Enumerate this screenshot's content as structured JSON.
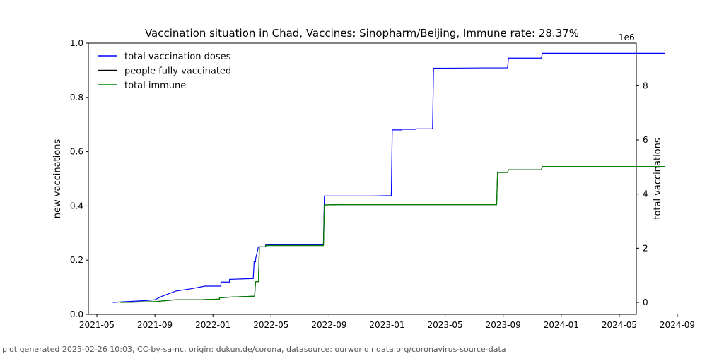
{
  "chart_data": {
    "type": "line",
    "title": "Vaccination situation in Chad, Vaccines: Sinopharm/Beijing, Immune rate: 28.37%",
    "ylabel_left": "new vaccinations",
    "ylabel_right": "total vaccinations",
    "right_axis_multiplier": "1e6",
    "left_ylim": [
      0,
      1.0
    ],
    "left_yticks": [
      "0.0",
      "0.2",
      "0.4",
      "0.6",
      "0.8",
      "1.0"
    ],
    "right_yticks": [
      "0",
      "2",
      "4",
      "6",
      "8"
    ],
    "xticks": [
      "2021-05",
      "2021-09",
      "2022-01",
      "2022-05",
      "2022-09",
      "2023-01",
      "2023-05",
      "2023-09",
      "2024-01",
      "2024-05",
      "2024-09"
    ],
    "legend_position": "upper-left",
    "series": [
      {
        "name": "total vaccination doses",
        "color": "#0000ff",
        "points": [
          [
            "2021-06-04",
            0.0
          ],
          [
            "2021-07-01",
            0.03
          ],
          [
            "2021-08-15",
            0.07
          ],
          [
            "2021-09-01",
            0.1
          ],
          [
            "2021-09-15",
            0.22
          ],
          [
            "2021-10-01",
            0.33
          ],
          [
            "2021-10-15",
            0.42
          ],
          [
            "2021-11-15",
            0.5
          ],
          [
            "2021-12-15",
            0.6
          ],
          [
            "2022-01-18",
            0.6
          ],
          [
            "2022-01-18",
            0.75
          ],
          [
            "2022-02-05",
            0.75
          ],
          [
            "2022-02-05",
            0.85
          ],
          [
            "2022-03-25",
            0.88
          ],
          [
            "2022-03-27",
            1.5
          ],
          [
            "2022-03-30",
            1.5
          ],
          [
            "2022-03-30",
            1.6
          ],
          [
            "2022-04-05",
            2.05
          ],
          [
            "2022-04-20",
            2.05
          ],
          [
            "2022-04-20",
            2.12
          ],
          [
            "2022-05-10",
            2.13
          ],
          [
            "2022-08-20",
            2.13
          ],
          [
            "2022-08-22",
            3.93
          ],
          [
            "2022-12-01",
            3.93
          ],
          [
            "2022-12-31",
            3.94
          ],
          [
            "2023-01-10",
            3.94
          ],
          [
            "2023-01-12",
            6.37
          ],
          [
            "2023-02-01",
            6.37
          ],
          [
            "2023-02-01",
            6.39
          ],
          [
            "2023-03-01",
            6.39
          ],
          [
            "2023-03-01",
            6.41
          ],
          [
            "2023-04-05",
            6.41
          ],
          [
            "2023-04-07",
            8.65
          ],
          [
            "2023-05-15",
            8.65
          ],
          [
            "2023-07-20",
            8.66
          ],
          [
            "2023-09-10",
            8.66
          ],
          [
            "2023-09-12",
            9.02
          ],
          [
            "2023-11-20",
            9.02
          ],
          [
            "2023-11-22",
            9.2
          ],
          [
            "2024-08-05",
            9.2
          ]
        ]
      },
      {
        "name": "people fully vaccinated",
        "color": "#000000",
        "points": [
          [
            "2021-06-20",
            0.0
          ],
          [
            "2021-09-01",
            0.03
          ],
          [
            "2021-10-15",
            0.1
          ],
          [
            "2021-12-01",
            0.1
          ],
          [
            "2022-01-15",
            0.12
          ],
          [
            "2022-01-15",
            0.17
          ],
          [
            "2022-02-10",
            0.2
          ],
          [
            "2022-03-28",
            0.23
          ],
          [
            "2022-03-30",
            0.76
          ],
          [
            "2022-04-05",
            0.76
          ],
          [
            "2022-04-07",
            2.05
          ],
          [
            "2022-04-20",
            2.05
          ],
          [
            "2022-04-20",
            2.1
          ],
          [
            "2022-08-20",
            2.1
          ],
          [
            "2022-08-22",
            3.6
          ],
          [
            "2022-09-20",
            3.61
          ],
          [
            "2023-08-18",
            3.61
          ],
          [
            "2023-08-20",
            4.8
          ],
          [
            "2023-09-10",
            4.8
          ],
          [
            "2023-09-12",
            4.9
          ],
          [
            "2023-11-20",
            4.9
          ],
          [
            "2023-11-22",
            5.02
          ],
          [
            "2024-08-05",
            5.02
          ]
        ]
      },
      {
        "name": "total immune",
        "color": "#008000",
        "points": [
          [
            "2021-06-20",
            0.0
          ],
          [
            "2021-09-01",
            0.03
          ],
          [
            "2021-10-15",
            0.1
          ],
          [
            "2021-12-01",
            0.1
          ],
          [
            "2022-01-15",
            0.12
          ],
          [
            "2022-01-15",
            0.17
          ],
          [
            "2022-02-10",
            0.2
          ],
          [
            "2022-03-28",
            0.23
          ],
          [
            "2022-03-30",
            0.76
          ],
          [
            "2022-04-05",
            0.76
          ],
          [
            "2022-04-07",
            2.05
          ],
          [
            "2022-04-20",
            2.05
          ],
          [
            "2022-04-20",
            2.1
          ],
          [
            "2022-08-20",
            2.1
          ],
          [
            "2022-08-22",
            3.6
          ],
          [
            "2022-09-20",
            3.61
          ],
          [
            "2023-08-18",
            3.61
          ],
          [
            "2023-08-20",
            4.8
          ],
          [
            "2023-09-10",
            4.8
          ],
          [
            "2023-09-12",
            4.9
          ],
          [
            "2023-11-20",
            4.9
          ],
          [
            "2023-11-22",
            5.02
          ],
          [
            "2024-08-05",
            5.02
          ]
        ]
      }
    ]
  },
  "footer": "plot generated 2025-02-26 10:03, CC-by-sa-nc, origin: dukun.de/corona, datasource: ourworldindata.org/coronavirus-source-data"
}
